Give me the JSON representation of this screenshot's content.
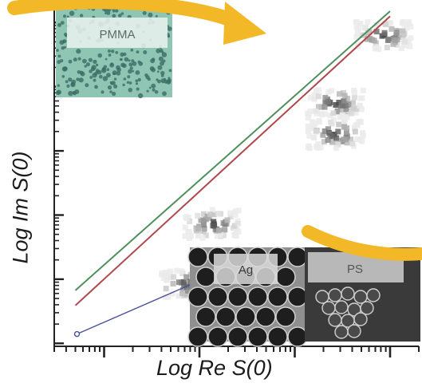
{
  "chart_data": {
    "type": "scatter",
    "xlabel": "Log Re S(0)",
    "ylabel": "Log Im S(0)",
    "x_scale": "log",
    "y_scale": "log",
    "grid": false,
    "fit_lines": [
      {
        "color": "#4e8f5c",
        "points": [
          [
            0.05,
            0.067
          ],
          [
            100,
            1500
          ]
        ]
      },
      {
        "color": "#b0484c",
        "points": [
          [
            0.05,
            0.039
          ],
          [
            100,
            1250
          ]
        ]
      }
    ],
    "series": [
      {
        "color": "#4a4f9c",
        "marker": "open-circle",
        "points": [
          [
            0.052,
            0.014
          ],
          [
            1.3,
            0.112
          ],
          [
            25,
            0.2
          ]
        ]
      }
    ],
    "density_clusters": [
      {
        "x": 1.3,
        "y": 0.8
      },
      {
        "x": 0.7,
        "y": 0.09
      },
      {
        "x": 25,
        "y": 60
      },
      {
        "x": 25,
        "y": 20
      },
      {
        "x": 80,
        "y": 700
      }
    ],
    "inset_labels": {
      "pmma": "PMMA",
      "ag": "Ag",
      "ps": "PS"
    }
  },
  "colors": {
    "arrow": "#f2b827",
    "pmma_bg": "#8ec5b3",
    "pmma_dots": "#3b6d65"
  }
}
